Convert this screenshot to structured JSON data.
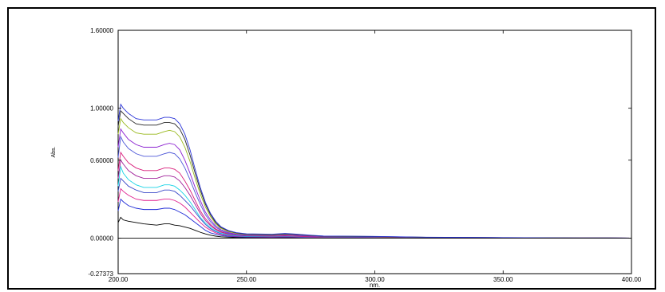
{
  "chart_data": {
    "type": "line",
    "title": "",
    "xlabel": "nm.",
    "ylabel": "Abs.",
    "xlim": [
      200.0,
      400.0
    ],
    "ylim": [
      -0.27373,
      1.6
    ],
    "x_ticks": [
      {
        "value": 200,
        "label": "200.00"
      },
      {
        "value": 250,
        "label": "250.00"
      },
      {
        "value": 300,
        "label": "300.00"
      },
      {
        "value": 350,
        "label": "350.00"
      },
      {
        "value": 400,
        "label": "400.00"
      }
    ],
    "y_ticks": [
      {
        "value": 1.6,
        "label": "1.60000"
      },
      {
        "value": 1.0,
        "label": "1.00000"
      },
      {
        "value": 0.6,
        "label": "0.60000"
      },
      {
        "value": 0.0,
        "label": "0.00000"
      },
      {
        "value": -0.27373,
        "label": "-0.27373"
      }
    ],
    "grid": false,
    "zero_line": true,
    "x": [
      200,
      201,
      202,
      204,
      207,
      210,
      215,
      218,
      220,
      222,
      224,
      226,
      228,
      230,
      232,
      234,
      236,
      238,
      240,
      243,
      246,
      250,
      260,
      265,
      270,
      275,
      280,
      300,
      320,
      350,
      380,
      400
    ],
    "series": [
      {
        "color": "#000000",
        "values": [
          0.12,
          0.16,
          0.14,
          0.13,
          0.12,
          0.11,
          0.1,
          0.11,
          0.11,
          0.1,
          0.095,
          0.085,
          0.075,
          0.06,
          0.045,
          0.032,
          0.022,
          0.015,
          0.01,
          0.007,
          0.005,
          0.004,
          0.003,
          0.004,
          0.003,
          0.003,
          0.002,
          0.002,
          0.001,
          0.001,
          0.0,
          0.0
        ]
      },
      {
        "color": "#1e2ad6",
        "values": [
          0.21,
          0.3,
          0.28,
          0.25,
          0.23,
          0.22,
          0.22,
          0.23,
          0.23,
          0.22,
          0.2,
          0.18,
          0.15,
          0.12,
          0.09,
          0.06,
          0.04,
          0.03,
          0.02,
          0.013,
          0.01,
          0.008,
          0.006,
          0.008,
          0.006,
          0.005,
          0.004,
          0.003,
          0.002,
          0.001,
          0.001,
          0.0
        ]
      },
      {
        "color": "#e0208f",
        "values": [
          0.28,
          0.38,
          0.36,
          0.33,
          0.3,
          0.29,
          0.29,
          0.3,
          0.3,
          0.29,
          0.27,
          0.24,
          0.2,
          0.16,
          0.12,
          0.085,
          0.06,
          0.04,
          0.028,
          0.018,
          0.013,
          0.01,
          0.008,
          0.01,
          0.008,
          0.006,
          0.005,
          0.004,
          0.002,
          0.001,
          0.001,
          0.0
        ]
      },
      {
        "color": "#3a48c8",
        "values": [
          0.36,
          0.46,
          0.44,
          0.4,
          0.37,
          0.35,
          0.35,
          0.37,
          0.37,
          0.36,
          0.33,
          0.29,
          0.25,
          0.2,
          0.15,
          0.105,
          0.072,
          0.05,
          0.034,
          0.022,
          0.016,
          0.012,
          0.01,
          0.012,
          0.01,
          0.008,
          0.006,
          0.005,
          0.003,
          0.002,
          0.001,
          0.0
        ]
      },
      {
        "color": "#18d4e6",
        "values": [
          0.4,
          0.55,
          0.5,
          0.45,
          0.41,
          0.39,
          0.39,
          0.41,
          0.41,
          0.4,
          0.37,
          0.33,
          0.28,
          0.22,
          0.16,
          0.115,
          0.08,
          0.055,
          0.038,
          0.025,
          0.018,
          0.014,
          0.012,
          0.014,
          0.011,
          0.009,
          0.007,
          0.006,
          0.003,
          0.002,
          0.001,
          0.0
        ]
      },
      {
        "color": "#a0209a",
        "values": [
          0.46,
          0.6,
          0.57,
          0.52,
          0.48,
          0.46,
          0.46,
          0.48,
          0.48,
          0.47,
          0.44,
          0.39,
          0.33,
          0.26,
          0.19,
          0.135,
          0.095,
          0.065,
          0.045,
          0.03,
          0.022,
          0.017,
          0.014,
          0.016,
          0.013,
          0.01,
          0.008,
          0.007,
          0.004,
          0.002,
          0.001,
          0.0
        ]
      },
      {
        "color": "#d81c7a",
        "values": [
          0.52,
          0.66,
          0.63,
          0.58,
          0.54,
          0.52,
          0.52,
          0.54,
          0.54,
          0.53,
          0.5,
          0.44,
          0.37,
          0.29,
          0.21,
          0.15,
          0.105,
          0.072,
          0.05,
          0.033,
          0.024,
          0.019,
          0.016,
          0.018,
          0.015,
          0.012,
          0.009,
          0.008,
          0.004,
          0.003,
          0.001,
          0.0
        ]
      },
      {
        "color": "#4d57d8",
        "values": [
          0.62,
          0.78,
          0.74,
          0.69,
          0.65,
          0.63,
          0.63,
          0.65,
          0.66,
          0.65,
          0.61,
          0.54,
          0.45,
          0.35,
          0.26,
          0.18,
          0.125,
          0.085,
          0.058,
          0.038,
          0.027,
          0.021,
          0.02,
          0.024,
          0.02,
          0.015,
          0.011,
          0.009,
          0.005,
          0.003,
          0.001,
          0.0
        ]
      },
      {
        "color": "#8a1fd0",
        "values": [
          0.7,
          0.84,
          0.81,
          0.76,
          0.72,
          0.7,
          0.7,
          0.72,
          0.73,
          0.72,
          0.68,
          0.6,
          0.5,
          0.39,
          0.29,
          0.2,
          0.14,
          0.095,
          0.065,
          0.043,
          0.031,
          0.024,
          0.022,
          0.026,
          0.022,
          0.016,
          0.012,
          0.01,
          0.005,
          0.003,
          0.001,
          0.0
        ]
      },
      {
        "color": "#98b81a",
        "values": [
          0.8,
          0.92,
          0.89,
          0.85,
          0.81,
          0.8,
          0.8,
          0.82,
          0.83,
          0.82,
          0.78,
          0.7,
          0.59,
          0.46,
          0.34,
          0.24,
          0.165,
          0.11,
          0.075,
          0.05,
          0.036,
          0.028,
          0.025,
          0.03,
          0.026,
          0.019,
          0.014,
          0.011,
          0.006,
          0.003,
          0.001,
          0.0
        ]
      },
      {
        "color": "#262626",
        "values": [
          0.86,
          0.98,
          0.96,
          0.92,
          0.88,
          0.87,
          0.87,
          0.89,
          0.89,
          0.88,
          0.84,
          0.76,
          0.64,
          0.5,
          0.37,
          0.26,
          0.18,
          0.12,
          0.082,
          0.055,
          0.04,
          0.031,
          0.028,
          0.033,
          0.028,
          0.02,
          0.015,
          0.012,
          0.006,
          0.003,
          0.001,
          0.0
        ]
      },
      {
        "color": "#2b35d8",
        "values": [
          0.9,
          1.03,
          1.0,
          0.96,
          0.92,
          0.91,
          0.91,
          0.93,
          0.93,
          0.92,
          0.88,
          0.8,
          0.68,
          0.53,
          0.39,
          0.275,
          0.19,
          0.13,
          0.088,
          0.058,
          0.042,
          0.033,
          0.03,
          0.036,
          0.03,
          0.022,
          0.016,
          0.013,
          0.007,
          0.004,
          0.001,
          0.0
        ]
      }
    ]
  }
}
